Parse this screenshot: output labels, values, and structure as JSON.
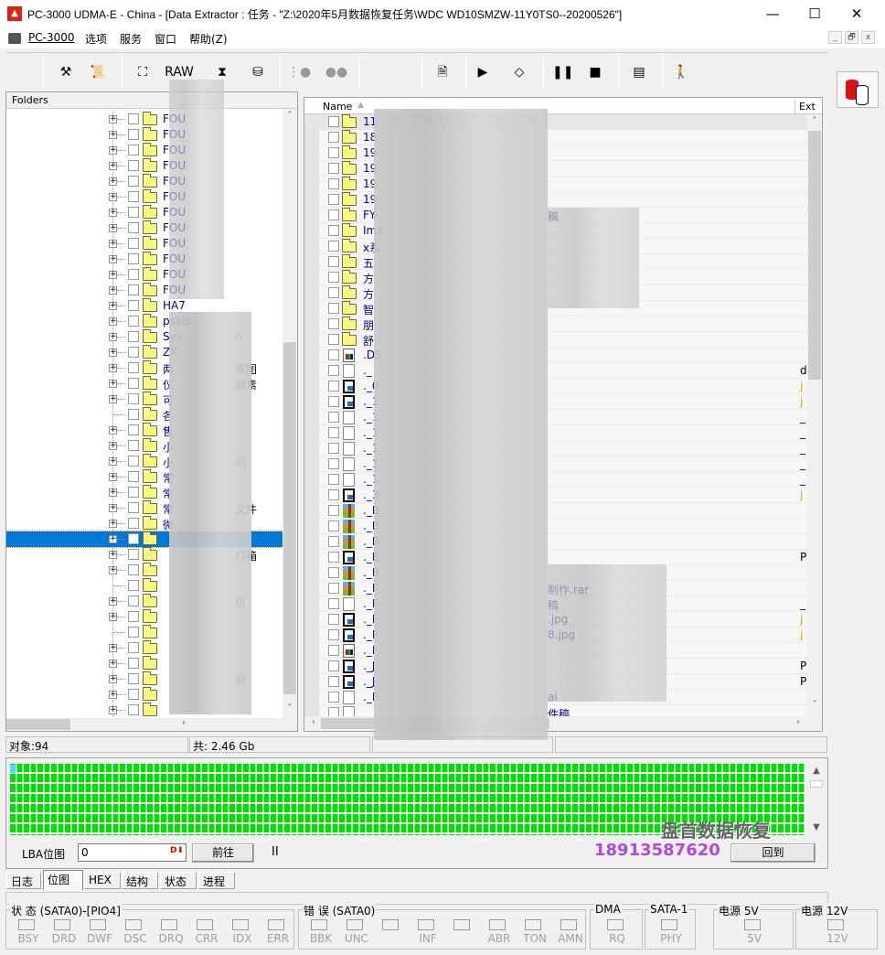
{
  "window": {
    "title": "PC-3000 UDMA-E - China - [Data Extractor : 任务 - \"Z:\\2020年5月数据恢复任务\\WDC WD10SMZW-11Y0TS0--20200526\"]",
    "minimize": "—",
    "maximize": "☐",
    "close": "✕"
  },
  "menu": {
    "items": [
      "PC-3000",
      "选项",
      "服务",
      "窗口",
      "帮助(Z)"
    ],
    "mdi_buttons": [
      "_",
      "🗗",
      "x"
    ]
  },
  "toolbar": {
    "raw_label": "RAW"
  },
  "folders": {
    "header": "Folders",
    "items": [
      {
        "text": "FOU",
        "exp": true
      },
      {
        "text": "FOU",
        "exp": true
      },
      {
        "text": "FOU",
        "exp": true
      },
      {
        "text": "FOU",
        "exp": true
      },
      {
        "text": "FOU",
        "exp": true
      },
      {
        "text": "FOU",
        "exp": true
      },
      {
        "text": "FOU",
        "exp": true
      },
      {
        "text": "FOU",
        "exp": true
      },
      {
        "text": "FOU",
        "exp": true
      },
      {
        "text": "FOU",
        "exp": true
      },
      {
        "text": "FOU",
        "exp": true
      },
      {
        "text": "FOU",
        "exp": true
      },
      {
        "text": "HA7",
        "exp": true
      },
      {
        "text": "psais",
        "exp": true
      },
      {
        "text": "Sys",
        "tail": "n",
        "exp": true
      },
      {
        "text": "ZK",
        "exp": true
      },
      {
        "text": "两",
        "tail": "景图",
        "exp": true
      },
      {
        "text": "仪",
        "tail": "面素",
        "exp": true
      },
      {
        "text": "可",
        "exp": true
      },
      {
        "text": "各",
        "exp": false
      },
      {
        "text": "售",
        "exp": true
      },
      {
        "text": "小",
        "exp": true
      },
      {
        "text": "小",
        "tail": "动",
        "exp": true
      },
      {
        "text": "常",
        "exp": true
      },
      {
        "text": "常",
        "exp": true
      },
      {
        "text": "常",
        "tail": "文件",
        "exp": true
      },
      {
        "text": "微",
        "exp": true
      },
      {
        "text": "",
        "exp": true,
        "selected": true
      },
      {
        "text": "",
        "tail": "灯箱",
        "exp": true
      },
      {
        "text": "",
        "exp": true
      },
      {
        "text": "",
        "exp": false
      },
      {
        "text": "",
        "tail": "店",
        "exp": true
      },
      {
        "text": "",
        "exp": true
      },
      {
        "text": "",
        "exp": false
      },
      {
        "text": "",
        "exp": true
      },
      {
        "text": "",
        "exp": true
      },
      {
        "text": "",
        "tail": "频",
        "exp": true
      },
      {
        "text": "",
        "exp": true
      },
      {
        "text": "",
        "exp": true
      }
    ]
  },
  "files": {
    "columns": {
      "name": "Name",
      "ext": "Ext"
    },
    "items": [
      {
        "text": "11",
        "icon": "folder"
      },
      {
        "text": "18",
        "icon": "folder"
      },
      {
        "text": "19",
        "icon": "folder"
      },
      {
        "text": "19",
        "icon": "folder"
      },
      {
        "text": "19",
        "icon": "folder"
      },
      {
        "text": "19",
        "icon": "folder"
      },
      {
        "text": "FY-",
        "tail": "稿",
        "icon": "folder"
      },
      {
        "text": "Ima",
        "icon": "folder"
      },
      {
        "text": "x系",
        "icon": "folder"
      },
      {
        "text": "五",
        "icon": "folder"
      },
      {
        "text": "方",
        "icon": "folder"
      },
      {
        "text": "方",
        "icon": "folder"
      },
      {
        "text": "智",
        "icon": "folder"
      },
      {
        "text": "朋",
        "icon": "folder"
      },
      {
        "text": "舒",
        "icon": "folder"
      },
      {
        "text": ".DS",
        "icon": "app"
      },
      {
        "text": "._",
        "icon": "file",
        "ext": "d"
      },
      {
        "text": "._0",
        "icon": "img",
        "ext": "j"
      },
      {
        "text": "._1",
        "icon": "img",
        "ext": "j"
      },
      {
        "text": "._1",
        "icon": "file",
        "ext": "_"
      },
      {
        "text": "._1",
        "icon": "file",
        "ext": "_"
      },
      {
        "text": "._1",
        "icon": "file",
        "ext": "_"
      },
      {
        "text": "._1",
        "icon": "file",
        "ext": "_"
      },
      {
        "text": "._1",
        "icon": "file",
        "ext": "_"
      },
      {
        "text": "._3",
        "icon": "img",
        "ext": "j"
      },
      {
        "text": "._B",
        "icon": "rar"
      },
      {
        "text": "._B",
        "icon": "rar"
      },
      {
        "text": "._B",
        "icon": "rar"
      },
      {
        "text": "._B",
        "icon": "img",
        "ext": "P"
      },
      {
        "text": "._B",
        "icon": "rar"
      },
      {
        "text": "._F",
        "tail": "制作.rar",
        "icon": "rar"
      },
      {
        "text": "._F",
        "tail": "稿",
        "icon": "file",
        "ext": "_"
      },
      {
        "text": "._F",
        "tail": ".jpg",
        "icon": "img",
        "ext": "j"
      },
      {
        "text": "._F",
        "tail": "8.jpg",
        "icon": "img",
        "ext": "j"
      },
      {
        "text": "._I",
        "icon": "app"
      },
      {
        "text": "._J",
        "icon": "img",
        "ext": "P"
      },
      {
        "text": "._J",
        "icon": "img",
        "ext": "P"
      },
      {
        "text": "._F",
        "tail": "ai",
        "icon": "file"
      },
      {
        "text": "",
        "tail": "件稿",
        "icon": "file"
      }
    ]
  },
  "status": {
    "objects": "对象:94",
    "total": "共: 2.46 Gb"
  },
  "bitmap": {
    "lba_label": "LBA位图",
    "lba_value": "0",
    "go_button": "前往",
    "pause": "II",
    "right_button": "回到",
    "watermark_name": "盘首数据恢复",
    "watermark_phone": "18913587620",
    "cell_color": "#00e000"
  },
  "tabs": [
    "日志",
    "位图",
    "HEX",
    "结构",
    "状态",
    "进程"
  ],
  "active_tab": "位图",
  "indicators": {
    "status": {
      "title": "状 态 (SATA0)-[PIO4]",
      "leds": [
        "BSY",
        "DRD",
        "DWF",
        "DSC",
        "DRQ",
        "CRR",
        "IDX",
        "ERR"
      ]
    },
    "error": {
      "title": "错 误 (SATA0)",
      "leds": [
        "BBK",
        "UNC",
        "",
        "INF",
        "",
        "ABR",
        "TON",
        "AMN"
      ]
    },
    "dma": {
      "title": "DMA",
      "leds": [
        "RQ"
      ]
    },
    "sata": {
      "title": "SATA-1",
      "leds": [
        "PHY"
      ]
    },
    "p5": {
      "title": "电源 5V",
      "leds": [
        "5V"
      ]
    },
    "p12": {
      "title": "电源 12V",
      "leds": [
        "12V"
      ]
    }
  }
}
